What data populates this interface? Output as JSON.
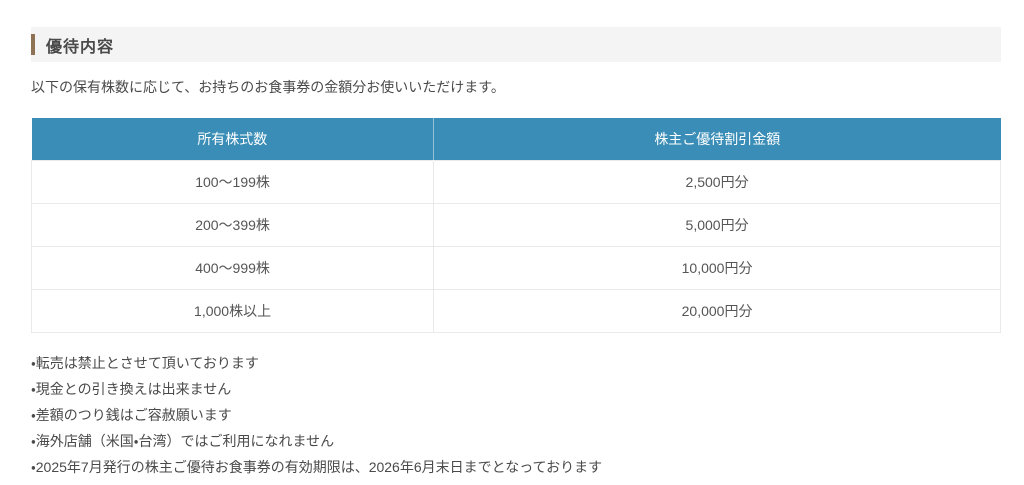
{
  "page": {
    "section_title": "優待内容",
    "intro": "以下の保有株数に応じて、お持ちのお食事券の金額分お使いいただけます。"
  },
  "table": {
    "headers": [
      "所有株式数",
      "株主ご優待割引金額"
    ],
    "rows": [
      {
        "shares": "100〜199株",
        "discount": "2,500円分"
      },
      {
        "shares": "200〜399株",
        "discount": "5,000円分"
      },
      {
        "shares": "400〜999株",
        "discount": "10,000円分"
      },
      {
        "shares": "1,000株以上",
        "discount": "20,000円分"
      }
    ]
  },
  "notes": [
    "・転売は禁止とさせて頂いております",
    "・現金との引き換えは出来ません",
    "・差額のつり銭はご容赦願います",
    "・海外店舗（米国・台湾）ではご利用になれません",
    "・2025年7月発行の株主ご優待お食事券の有効期限は、2026年6月末日までとなっております"
  ],
  "colors": {
    "table_header_bg": "#3a8db6",
    "heading_accent_bar": "#8f7155",
    "heading_band_bg": "#f4f4f4",
    "table_border": "#e9e9e9",
    "body_text": "#4a4a4a",
    "cell_text": "#555555",
    "header_text": "#ffffff"
  }
}
